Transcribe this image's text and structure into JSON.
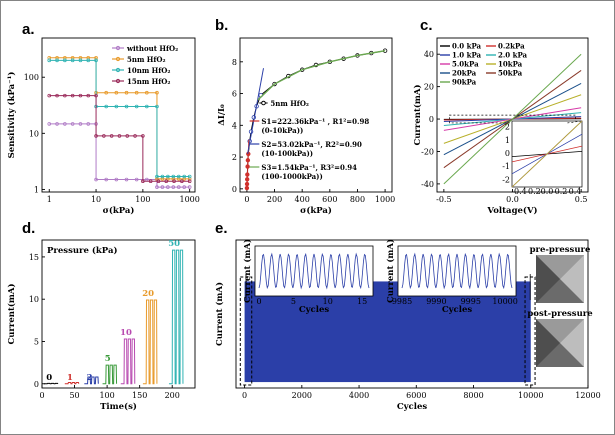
{
  "colors": {
    "without": "#b07cc6",
    "nm5": "#e89a2a",
    "nm10": "#2fb3b3",
    "nm15": "#9a2a5a",
    "blue": "#2b3fa8",
    "green": "#6aa84f",
    "red": "#d0312d"
  },
  "panel_a": {
    "letter": "a.",
    "ylabel": "Sensitivity (kPa⁻¹)",
    "xlabel": "σ(kPa)",
    "xticks": [
      "1",
      "10",
      "100",
      "1000"
    ],
    "yticks": [
      "1",
      "10",
      "100"
    ]
  },
  "panel_b": {
    "letter": "b.",
    "ylabel": "ΔI/I₀",
    "xlabel": "σ(kPa)",
    "xticks": [
      "0",
      "200",
      "400",
      "600",
      "800",
      "1000"
    ],
    "yticks": [
      "0",
      "2",
      "4",
      "6",
      "8"
    ],
    "annotations": [
      "S1=222.36kPa⁻¹ , R1²=0.98",
      "(0-10kPa))",
      "S2=53.02kPa⁻¹, R2²=0.90",
      "(10-100kPa))",
      "S3=1.54kPa⁻¹, R3²=0.94",
      "(100-1000kPa))"
    ]
  },
  "panel_c": {
    "letter": "c.",
    "ylabel": "Current(mA)",
    "xlabel": "Voltage(V)",
    "xticks": [
      "-0.5",
      "0.0",
      "0.5"
    ],
    "yticks": [
      "-40",
      "-20",
      "0",
      "20",
      "40"
    ],
    "inset_xticks": [
      "-0.4",
      "-0.2",
      "0.0",
      "0.2",
      "0.4"
    ],
    "inset_yticks": [
      "2",
      "1",
      "0",
      "-1",
      "-2"
    ]
  },
  "panel_d": {
    "letter": "d.",
    "title": "Pressure (kPa)",
    "ylabel": "Current(mA)",
    "xlabel": "Time(s)",
    "xticks": [
      "0",
      "50",
      "100",
      "150",
      "200"
    ],
    "yticks": [
      "0",
      "5",
      "10",
      "15"
    ],
    "step_labels": [
      "0",
      "1",
      "2",
      "5",
      "10",
      "20",
      "50"
    ]
  },
  "panel_e": {
    "letter": "e.",
    "ylabel": "Current (mA)",
    "xlabel": "Cycles",
    "xticks": [
      "0",
      "2000",
      "4000",
      "6000",
      "8000",
      "10000",
      "12000"
    ],
    "inset1": {
      "ylabel": "Current (mA)",
      "xlabel": "Cycles",
      "xticks": [
        "0",
        "5",
        "10",
        "15"
      ]
    },
    "inset2": {
      "ylabel": "Current (mA)",
      "xlabel": "Cycles",
      "xticks": [
        "9985",
        "9990",
        "9995",
        "10000"
      ]
    },
    "pre_label": "pre-pressure",
    "post_label": "post-pressure"
  },
  "chart_data": [
    {
      "type": "line",
      "panel": "a",
      "xscale": "log",
      "yscale": "log",
      "xlim": [
        0.7,
        1300
      ],
      "ylim": [
        0.9,
        500
      ],
      "xlabel": "σ(kPa)",
      "ylabel": "Sensitivity (kPa⁻¹)",
      "legend_position": "top-right",
      "series": [
        {
          "name": "without HfO₂",
          "x": [
            1,
            10,
            10,
            200,
            200,
            1000
          ],
          "y": [
            14.7,
            14.7,
            1.5,
            1.5,
            1.1,
            1.1
          ]
        },
        {
          "name": "5nm HfO₂",
          "x": [
            1,
            10,
            10,
            200,
            200,
            1000
          ],
          "y": [
            222,
            222,
            53,
            53,
            1.54,
            1.54
          ]
        },
        {
          "name": "10nm HfO₂",
          "x": [
            1,
            10,
            10,
            200,
            200,
            1000
          ],
          "y": [
            200,
            200,
            30,
            30,
            1.7,
            1.7
          ]
        },
        {
          "name": "15nm HfO₂",
          "x": [
            1,
            10,
            10,
            100,
            100,
            1000
          ],
          "y": [
            47,
            47,
            9,
            9,
            1.4,
            1.4
          ]
        }
      ]
    },
    {
      "type": "scatter",
      "panel": "b",
      "xlim": [
        -50,
        1050
      ],
      "ylim": [
        -0.2,
        9.5
      ],
      "xlabel": "σ(kPa)",
      "ylabel": "ΔI/I₀",
      "legend": "5nm HfO₂",
      "x": [
        0,
        1,
        2,
        3,
        5,
        7,
        10,
        20,
        30,
        50,
        70,
        100,
        200,
        300,
        400,
        500,
        600,
        700,
        800,
        900,
        1000
      ],
      "y": [
        0.05,
        0.3,
        0.6,
        0.9,
        1.4,
        1.8,
        2.2,
        3.0,
        3.6,
        4.5,
        5.2,
        5.9,
        6.6,
        7.1,
        7.5,
        7.8,
        8.0,
        8.2,
        8.4,
        8.55,
        8.7
      ],
      "fits": [
        {
          "name": "S1=222.36kPa⁻¹",
          "range": [
            0,
            10
          ]
        },
        {
          "name": "S2=53.02kPa⁻¹",
          "range": [
            10,
            100
          ]
        },
        {
          "name": "S3=1.54kPa⁻¹",
          "range": [
            100,
            1000
          ]
        }
      ]
    },
    {
      "type": "line",
      "panel": "c",
      "xlim": [
        -0.55,
        0.55
      ],
      "ylim": [
        -45,
        50
      ],
      "xlabel": "Voltage(V)",
      "ylabel": "Current(mA)",
      "series": [
        {
          "name": "0.0 kPa",
          "color": "#000000",
          "slope": 0.4
        },
        {
          "name": "0.2kPa",
          "color": "#d0312d",
          "slope": 1.2
        },
        {
          "name": "1.0 kPa",
          "color": "#2b3fa8",
          "slope": 3
        },
        {
          "name": "2.0 kPa",
          "color": "#2fb3b3",
          "slope": 8
        },
        {
          "name": "5.0kPa",
          "color": "#d63aa8",
          "slope": 14
        },
        {
          "name": "10kPa",
          "color": "#b8b02a",
          "slope": 30
        },
        {
          "name": "20kPa",
          "color": "#1a4f8a",
          "slope": 44
        },
        {
          "name": "50kPa",
          "color": "#8a3a2a",
          "slope": 60
        },
        {
          "name": "90kPa",
          "color": "#6aa84f",
          "slope": 80
        }
      ]
    },
    {
      "type": "line",
      "panel": "d",
      "xlim": [
        0,
        235
      ],
      "ylim": [
        -0.5,
        17
      ],
      "xlabel": "Time(s)",
      "ylabel": "Current(mA)",
      "title": "Pressure (kPa)",
      "series": [
        {
          "name": "0",
          "color": "#000000",
          "value": 0.05,
          "start": 8
        },
        {
          "name": "1",
          "color": "#d0312d",
          "value": 0.15,
          "start": 40
        },
        {
          "name": "2",
          "color": "#2b3fa8",
          "value": 0.8,
          "start": 70
        },
        {
          "name": "5",
          "color": "#3a9a3a",
          "value": 2.2,
          "start": 98
        },
        {
          "name": "10",
          "color": "#b84ab0",
          "value": 5.3,
          "start": 126
        },
        {
          "name": "20",
          "color": "#e89a2a",
          "value": 9.9,
          "start": 160
        },
        {
          "name": "50",
          "color": "#2fb3b3",
          "value": 15.8,
          "start": 200
        }
      ]
    },
    {
      "type": "area",
      "panel": "e",
      "xlim": [
        -300,
        12000
      ],
      "ylim": [
        0,
        1
      ],
      "xlabel": "Cycles",
      "ylabel": "Current (mA)",
      "x": [
        0,
        10000
      ],
      "y": [
        0.72,
        0.72
      ]
    }
  ]
}
